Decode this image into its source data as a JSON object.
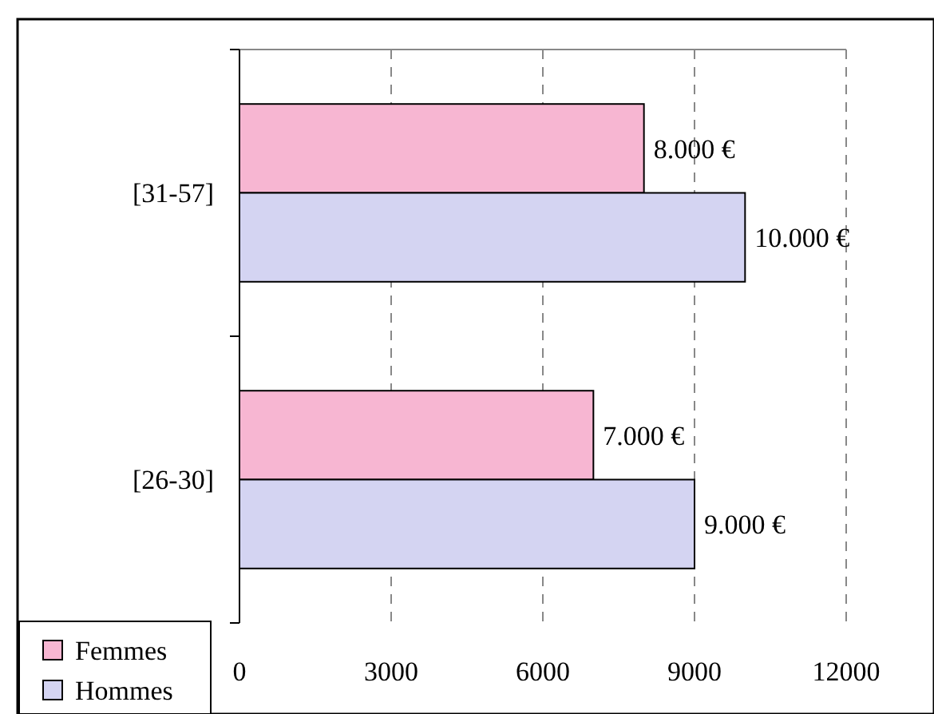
{
  "chart_data": {
    "type": "bar",
    "orientation": "horizontal",
    "categories": [
      "[31-57]",
      "[26-30]"
    ],
    "series": [
      {
        "name": "Femmes",
        "color": "#f7b6d2",
        "values": [
          8000,
          7000
        ],
        "value_labels": [
          "8.000 €",
          "7.000 €"
        ]
      },
      {
        "name": "Hommes",
        "color": "#d4d4f2",
        "values": [
          10000,
          9000
        ],
        "value_labels": [
          "10.000 €",
          "9.000 €"
        ]
      }
    ],
    "xlim": [
      0,
      12000
    ],
    "xticks": [
      0,
      3000,
      6000,
      9000,
      12000
    ],
    "grid": "x",
    "legend": "bottom left"
  }
}
